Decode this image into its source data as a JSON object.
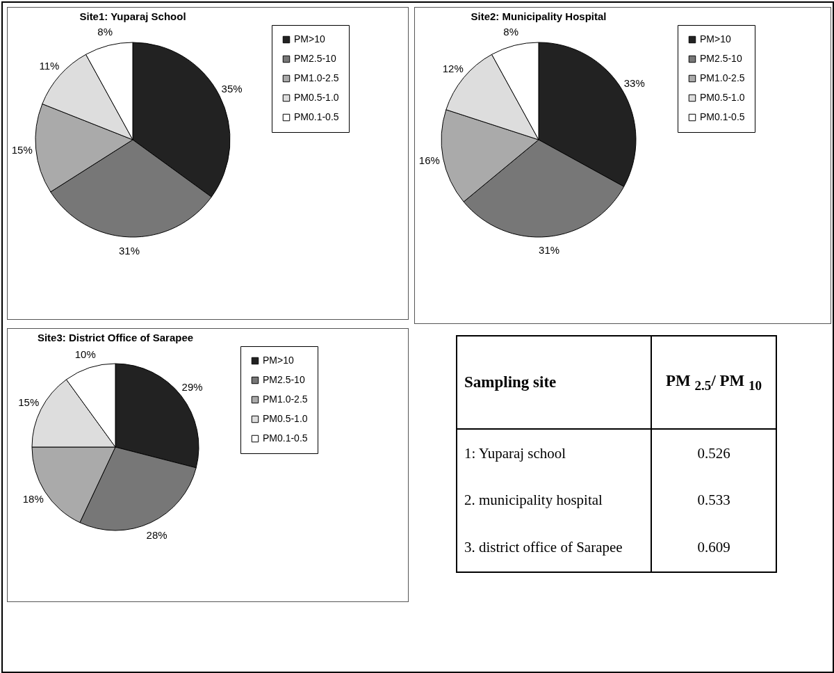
{
  "chart_data": [
    {
      "type": "pie",
      "title": "Site1: Yuparaj School",
      "categories": [
        "PM>10",
        "PM2.5-10",
        "PM1.0-2.5",
        "PM0.5-1.0",
        "PM0.1-0.5"
      ],
      "values": [
        35,
        31,
        15,
        11,
        8
      ],
      "value_labels": [
        "35%",
        "31%",
        "15%",
        "11%",
        "8%"
      ],
      "colors": [
        "#222222",
        "#777777",
        "#aaaaaa",
        "#dddddd",
        "#ffffff"
      ],
      "legend": "right"
    },
    {
      "type": "pie",
      "title": "Site2: Municipality Hospital",
      "categories": [
        "PM>10",
        "PM2.5-10",
        "PM1.0-2.5",
        "PM0.5-1.0",
        "PM0.1-0.5"
      ],
      "values": [
        33,
        31,
        16,
        12,
        8
      ],
      "value_labels": [
        "33%",
        "31%",
        "16%",
        "12%",
        "8%"
      ],
      "colors": [
        "#222222",
        "#777777",
        "#aaaaaa",
        "#dddddd",
        "#ffffff"
      ],
      "legend": "right"
    },
    {
      "type": "pie",
      "title": "Site3: District Office of Sarapee",
      "categories": [
        "PM>10",
        "PM2.5-10",
        "PM1.0-2.5",
        "PM0.5-1.0",
        "PM0.1-0.5"
      ],
      "values": [
        29,
        28,
        18,
        15,
        10
      ],
      "value_labels": [
        "29%",
        "28%",
        "18%",
        "15%",
        "10%"
      ],
      "colors": [
        "#222222",
        "#777777",
        "#aaaaaa",
        "#dddddd",
        "#ffffff"
      ],
      "legend": "right"
    },
    {
      "type": "other",
      "xlabel": "Sampling site",
      "ylabel": "PM $_{2.5}$/ PM $_{10}$",
      "categories": [
        "1: Yuparaj school",
        "2. municipality hospital",
        "3. district office of Sarapee"
      ],
      "values": [
        0.526,
        0.533,
        0.609
      ],
      "data_labels": true
    }
  ]
}
